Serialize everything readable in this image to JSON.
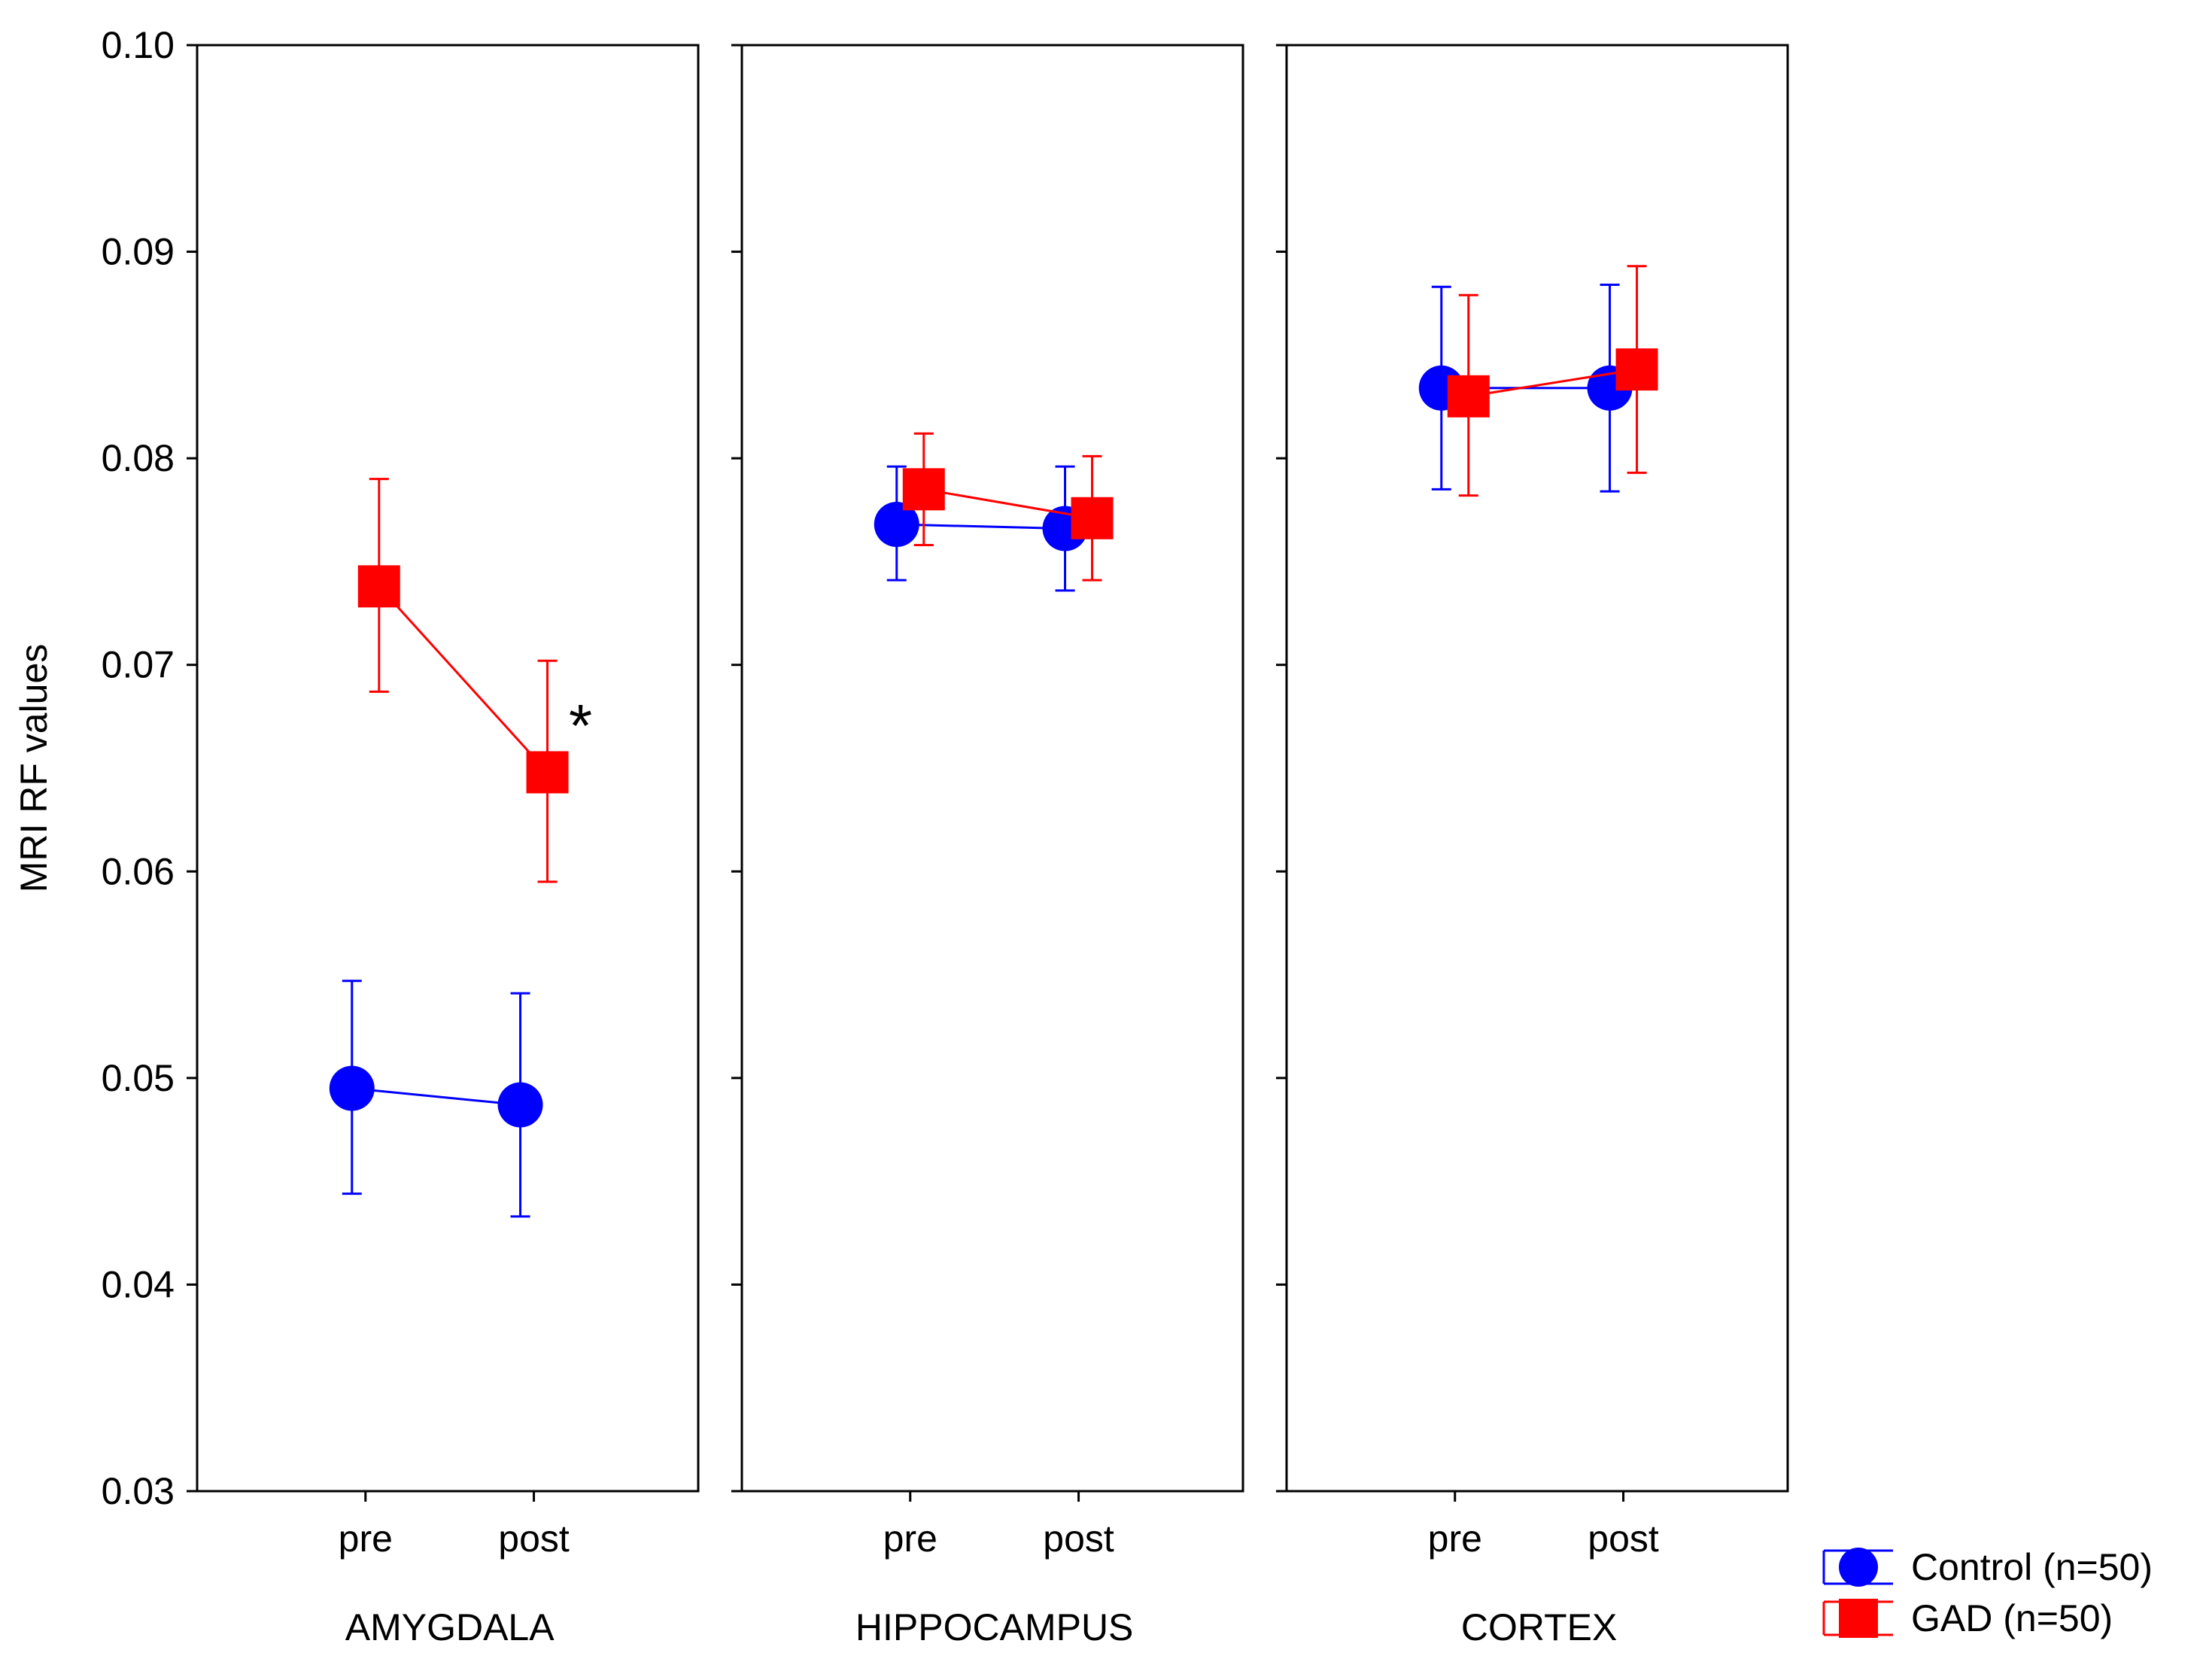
{
  "colors": {
    "control": "#0000ff",
    "gad": "#ff0000",
    "axis": "#000000"
  },
  "chart_data": {
    "type": "line",
    "ylabel": "MRI RF values",
    "ylim": [
      0.03,
      0.1
    ],
    "yticks": [
      "0.03",
      "0.04",
      "0.05",
      "0.06",
      "0.07",
      "0.08",
      "0.09",
      "0.10"
    ],
    "ytick_values": [
      0.03,
      0.04,
      0.05,
      0.06,
      0.07,
      0.08,
      0.09,
      0.1
    ],
    "categories": [
      "pre",
      "post"
    ],
    "legend": {
      "position": "bottom-right",
      "entries": [
        {
          "name": "Control (n=50)",
          "marker": "circle",
          "color": "#0000ff"
        },
        {
          "name": "GAD (n=50)",
          "marker": "square",
          "color": "#ff0000"
        }
      ]
    },
    "panels": [
      {
        "label": "AMYGDALA",
        "series": [
          {
            "name": "Control (n=50)",
            "values": [
              0.0495,
              0.0487
            ],
            "lower": [
              0.0444,
              0.0433
            ],
            "upper": [
              0.0547,
              0.0541
            ]
          },
          {
            "name": "GAD (n=50)",
            "values": [
              0.0738,
              0.0648
            ],
            "lower": [
              0.0687,
              0.0595
            ],
            "upper": [
              0.079,
              0.0702
            ]
          }
        ],
        "annotation": {
          "text": "*",
          "category": "post",
          "value": 0.0678
        }
      },
      {
        "label": "HIPPOCAMPUS",
        "series": [
          {
            "name": "Control (n=50)",
            "values": [
              0.0768,
              0.0766
            ],
            "lower": [
              0.0741,
              0.0736
            ],
            "upper": [
              0.0796,
              0.0796
            ]
          },
          {
            "name": "GAD (n=50)",
            "values": [
              0.0785,
              0.0771
            ],
            "lower": [
              0.0758,
              0.0741
            ],
            "upper": [
              0.0812,
              0.0801
            ]
          }
        ]
      },
      {
        "label": "CORTEX",
        "series": [
          {
            "name": "Control (n=50)",
            "values": [
              0.0834,
              0.0834
            ],
            "lower": [
              0.0785,
              0.0784
            ],
            "upper": [
              0.0883,
              0.0884
            ]
          },
          {
            "name": "GAD (n=50)",
            "values": [
              0.083,
              0.0843
            ],
            "lower": [
              0.0782,
              0.0793
            ],
            "upper": [
              0.0879,
              0.0893
            ]
          }
        ]
      }
    ]
  }
}
